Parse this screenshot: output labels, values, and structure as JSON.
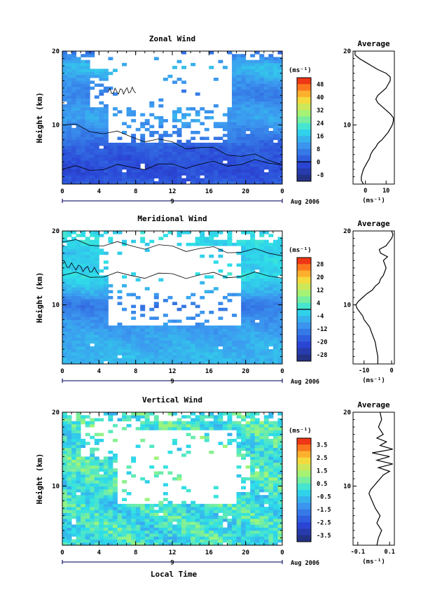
{
  "chart_data": [
    {
      "type": "heatmap",
      "title": "Zonal Wind",
      "xlabel": "",
      "ylabel": "Height (km)",
      "x_ticks": [
        "0",
        "4",
        "8",
        "12",
        "16",
        "20",
        "0"
      ],
      "y_ticks": [
        "20",
        "10"
      ],
      "xlim": [
        0,
        24
      ],
      "ylim": [
        2,
        20
      ],
      "date_label": "9",
      "date_suffix": "Aug 2006",
      "colorbar": {
        "unit": "(ms⁻¹)",
        "ticks": [
          "48",
          "40",
          "32",
          "24",
          "16",
          "8",
          "0",
          "-8"
        ],
        "min": -12,
        "max": 52,
        "zero_line": 0
      },
      "profile_knots": [
        [
          2,
          2
        ],
        [
          3,
          0
        ],
        [
          4,
          -1
        ],
        [
          5,
          0
        ],
        [
          6,
          1
        ],
        [
          7,
          2
        ],
        [
          8,
          5
        ],
        [
          9,
          8
        ],
        [
          10,
          10
        ],
        [
          11,
          12
        ],
        [
          12,
          11
        ],
        [
          13,
          9
        ],
        [
          14,
          7
        ],
        [
          15,
          9
        ],
        [
          16,
          11
        ],
        [
          17,
          14
        ],
        [
          18,
          15
        ],
        [
          19,
          10
        ],
        [
          20,
          4
        ]
      ],
      "blank_regions": [
        [
          5.5,
          17.5,
          10,
          0.3
        ],
        [
          3,
          14.5,
          4,
          0.18
        ],
        [
          3,
          19,
          3,
          0.2
        ],
        [
          5,
          12.6,
          10,
          0.12
        ]
      ],
      "contours": [
        [
          0,
          10,
          24,
          5
        ],
        [
          0,
          4,
          24,
          5
        ],
        [
          5,
          14.5,
          8,
          14.7
        ]
      ],
      "average": {
        "title": "Average",
        "xlabel": "(ms⁻¹)",
        "x_ticks": [
          0,
          10
        ],
        "xlim": [
          -6,
          14
        ],
        "y_ticks": [
          "20",
          "10"
        ],
        "height": [
          2,
          2.5,
          3,
          3.5,
          4,
          4.5,
          5,
          5.5,
          6,
          6.5,
          7,
          7.5,
          8,
          8.5,
          9,
          9.5,
          10,
          10.5,
          11,
          11.5,
          12,
          12.5,
          13,
          13.5,
          14,
          14.5,
          15,
          15.5,
          16,
          16.5,
          17,
          17.5,
          18,
          18.5,
          19,
          19.5,
          20
        ],
        "value": [
          -1,
          -2,
          -2,
          -1.5,
          -1,
          0,
          1,
          2,
          2.5,
          3.5,
          5,
          6,
          8,
          9.5,
          11,
          12,
          13,
          13.5,
          13.5,
          12,
          10,
          8,
          6,
          5,
          6,
          8,
          10,
          11,
          12,
          12,
          10,
          6,
          3,
          0,
          -3,
          -5,
          -5
        ]
      }
    },
    {
      "type": "heatmap",
      "title": "Meridional Wind",
      "xlabel": "",
      "ylabel": "Height (km)",
      "x_ticks": [
        "0",
        "4",
        "8",
        "12",
        "16",
        "20",
        "0"
      ],
      "y_ticks": [
        "20",
        "10"
      ],
      "xlim": [
        0,
        24
      ],
      "ylim": [
        2,
        20
      ],
      "date_label": "9",
      "date_suffix": "Aug 2006",
      "colorbar": {
        "unit": "(ms⁻¹)",
        "ticks": [
          "28",
          "20",
          "12",
          "4",
          "-4",
          "-12",
          "-20",
          "-28"
        ],
        "min": -32,
        "max": 32,
        "zero_line": 0
      },
      "profile_knots": [
        [
          2,
          -5
        ],
        [
          4,
          -6
        ],
        [
          6,
          -8
        ],
        [
          8,
          -10
        ],
        [
          9,
          -12
        ],
        [
          10,
          -14
        ],
        [
          11,
          -10
        ],
        [
          12,
          -6
        ],
        [
          13,
          -3
        ],
        [
          14,
          0
        ],
        [
          15,
          -2
        ],
        [
          16,
          -1
        ],
        [
          17,
          -3
        ],
        [
          18,
          -2
        ],
        [
          19,
          0
        ],
        [
          20,
          -1
        ]
      ],
      "blank_regions": [
        [
          4,
          18,
          8,
          0.2
        ],
        [
          5,
          12.5,
          11,
          0.3
        ],
        [
          8,
          15,
          6,
          0.2
        ]
      ],
      "contours": [
        [
          0,
          14,
          24,
          14
        ],
        [
          0,
          18.5,
          24,
          17
        ],
        [
          0,
          15.5,
          4,
          14.5
        ]
      ],
      "average": {
        "title": "Average",
        "xlabel": "(ms⁻¹)",
        "x_ticks": [
          -10,
          0
        ],
        "xlim": [
          -14,
          1
        ],
        "y_ticks": [
          "20",
          "10"
        ],
        "height": [
          2,
          3,
          4,
          5,
          6,
          7,
          8,
          8.5,
          9,
          9.5,
          10,
          10.5,
          11,
          11.5,
          12,
          12.5,
          13,
          13.5,
          14,
          15,
          16,
          16.5,
          17,
          17.5,
          18,
          18.5,
          19,
          19.5,
          20
        ],
        "value": [
          -5,
          -5,
          -5.5,
          -6,
          -7,
          -8,
          -10,
          -10.5,
          -11.5,
          -12.5,
          -13,
          -12,
          -10.5,
          -9,
          -7,
          -6,
          -4.5,
          -4,
          -3,
          -2,
          -3,
          -1.5,
          -4,
          -4.5,
          -2,
          -1,
          0,
          0.5,
          0
        ]
      }
    },
    {
      "type": "heatmap",
      "title": "Vertical Wind",
      "xlabel": "Local Time",
      "ylabel": "Height (km)",
      "x_ticks": [
        "0",
        "4",
        "8",
        "12",
        "16",
        "20",
        "0"
      ],
      "y_ticks": [
        "20",
        "10"
      ],
      "xlim": [
        0,
        24
      ],
      "ylim": [
        2,
        20
      ],
      "date_label": "9",
      "date_suffix": "Aug 2006",
      "colorbar": {
        "unit": "(ms⁻¹)",
        "ticks": [
          "3.5",
          "2.5",
          "1.5",
          "0.5",
          "-0.5",
          "-1.5",
          "-2.5",
          "-3.5"
        ],
        "min": -4,
        "max": 4,
        "zero_line": null
      },
      "profile_knots": [
        [
          2,
          0.1
        ],
        [
          10,
          0.1
        ],
        [
          13,
          0.3
        ],
        [
          20,
          0.2
        ]
      ],
      "blank_regions": [
        [
          6,
          12.5,
          10,
          0.3
        ],
        [
          2,
          16.5,
          5,
          0.15
        ],
        [
          14,
          11.5,
          5,
          0.2
        ]
      ],
      "contours": [],
      "average": {
        "title": "Average",
        "xlabel": "(ms⁻¹)",
        "x_ticks": [
          -0.1,
          0.1
        ],
        "xlim": [
          -0.13,
          0.13
        ],
        "y_ticks": [
          "20",
          "10"
        ],
        "height": [
          2,
          3,
          4,
          5,
          6,
          7,
          8,
          9,
          9.5,
          10,
          10.5,
          11,
          11.5,
          12,
          12.5,
          13,
          13.5,
          14,
          14.5,
          15,
          15.5,
          16,
          16.5,
          17,
          18,
          19,
          20
        ],
        "value": [
          0.02,
          0.03,
          0.05,
          0.02,
          0.04,
          0.01,
          -0.01,
          -0.03,
          -0.02,
          0.0,
          0.02,
          0.04,
          0.06,
          0.1,
          0.03,
          0.12,
          0.02,
          0.1,
          -0.01,
          0.12,
          0.04,
          0.08,
          0.02,
          0.06,
          0.03,
          0.05,
          0.04
        ]
      }
    }
  ]
}
